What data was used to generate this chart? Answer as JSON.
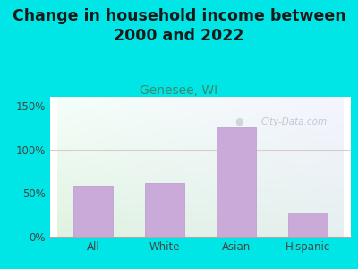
{
  "title": "Change in household income between\n2000 and 2022",
  "subtitle": "Genesee, WI",
  "categories": [
    "All",
    "White",
    "Asian",
    "Hispanic"
  ],
  "values": [
    58,
    62,
    125,
    28
  ],
  "bar_color": "#c9aad8",
  "bar_edge_color": "#b898cc",
  "background_color": "#00e5e5",
  "title_fontsize": 12.5,
  "subtitle_fontsize": 10,
  "subtitle_color": "#3a8a6a",
  "title_color": "#1a1a1a",
  "tick_color": "#444444",
  "ylim": [
    0,
    160
  ],
  "yticks": [
    0,
    50,
    100,
    150
  ],
  "ytick_labels": [
    "0%",
    "50%",
    "100%",
    "150%"
  ],
  "watermark_text": "City-Data.com",
  "watermark_color": "#b8c0cc",
  "plot_grad_top": "#f5fffa",
  "plot_grad_right": "#e8f0f8",
  "plot_grad_bottom": "#e0f0e0"
}
